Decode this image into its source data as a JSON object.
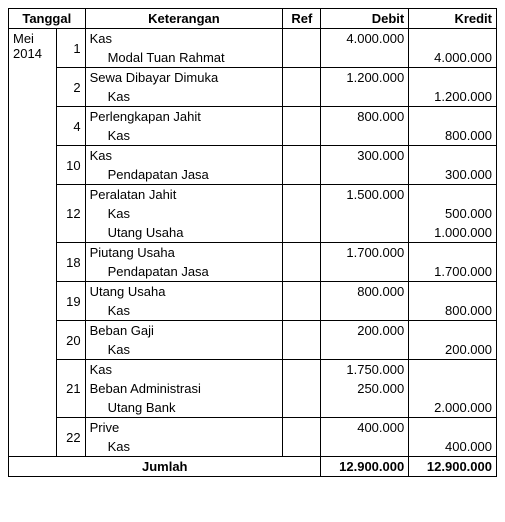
{
  "headers": {
    "tanggal": "Tanggal",
    "keterangan": "Keterangan",
    "ref": "Ref",
    "debit": "Debit",
    "kredit": "Kredit"
  },
  "period": "Mei 2014",
  "entries": [
    {
      "day": "1",
      "lines": [
        {
          "desc": "Kas",
          "indent": false,
          "debit": "4.000.000",
          "kredit": ""
        },
        {
          "desc": "Modal Tuan Rahmat",
          "indent": true,
          "debit": "",
          "kredit": "4.000.000"
        }
      ]
    },
    {
      "day": "2",
      "lines": [
        {
          "desc": "Sewa Dibayar Dimuka",
          "indent": false,
          "debit": "1.200.000",
          "kredit": ""
        },
        {
          "desc": "Kas",
          "indent": true,
          "debit": "",
          "kredit": "1.200.000"
        }
      ]
    },
    {
      "day": "4",
      "lines": [
        {
          "desc": "Perlengkapan Jahit",
          "indent": false,
          "debit": "800.000",
          "kredit": ""
        },
        {
          "desc": "Kas",
          "indent": true,
          "debit": "",
          "kredit": "800.000"
        }
      ]
    },
    {
      "day": "10",
      "lines": [
        {
          "desc": "Kas",
          "indent": false,
          "debit": "300.000",
          "kredit": ""
        },
        {
          "desc": "Pendapatan Jasa",
          "indent": true,
          "debit": "",
          "kredit": "300.000"
        }
      ]
    },
    {
      "day": "12",
      "lines": [
        {
          "desc": "Peralatan Jahit",
          "indent": false,
          "debit": "1.500.000",
          "kredit": ""
        },
        {
          "desc": "Kas",
          "indent": true,
          "debit": "",
          "kredit": "500.000"
        },
        {
          "desc": "Utang Usaha",
          "indent": true,
          "debit": "",
          "kredit": "1.000.000"
        }
      ]
    },
    {
      "day": "18",
      "lines": [
        {
          "desc": "Piutang Usaha",
          "indent": false,
          "debit": "1.700.000",
          "kredit": ""
        },
        {
          "desc": "Pendapatan Jasa",
          "indent": true,
          "debit": "",
          "kredit": "1.700.000"
        }
      ]
    },
    {
      "day": "19",
      "lines": [
        {
          "desc": "Utang Usaha",
          "indent": false,
          "debit": "800.000",
          "kredit": ""
        },
        {
          "desc": "Kas",
          "indent": true,
          "debit": "",
          "kredit": "800.000"
        }
      ]
    },
    {
      "day": "20",
      "lines": [
        {
          "desc": "Beban Gaji",
          "indent": false,
          "debit": "200.000",
          "kredit": ""
        },
        {
          "desc": "Kas",
          "indent": true,
          "debit": "",
          "kredit": "200.000"
        }
      ]
    },
    {
      "day": "21",
      "lines": [
        {
          "desc": "Kas",
          "indent": false,
          "debit": "1.750.000",
          "kredit": ""
        },
        {
          "desc": "Beban Administrasi",
          "indent": false,
          "debit": "250.000",
          "kredit": ""
        },
        {
          "desc": "Utang Bank",
          "indent": true,
          "debit": "",
          "kredit": "2.000.000"
        }
      ]
    },
    {
      "day": "22",
      "lines": [
        {
          "desc": "Prive",
          "indent": false,
          "debit": "400.000",
          "kredit": ""
        },
        {
          "desc": "Kas",
          "indent": true,
          "debit": "",
          "kredit": "400.000"
        }
      ]
    }
  ],
  "total": {
    "label": "Jumlah",
    "debit": "12.900.000",
    "kredit": "12.900.000"
  }
}
